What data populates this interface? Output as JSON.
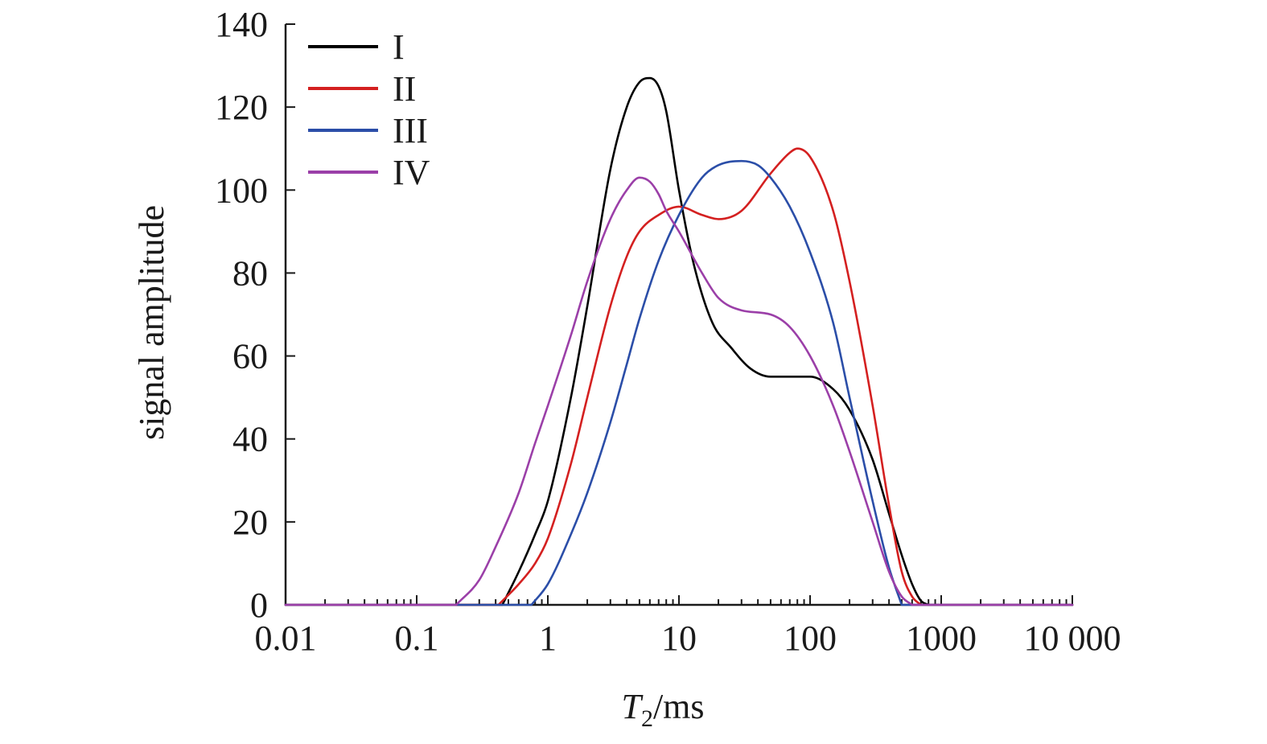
{
  "chart_data": {
    "type": "line",
    "xscale": "log",
    "xlim": [
      0.01,
      10000
    ],
    "ylim": [
      0,
      140
    ],
    "xticks": [
      0.01,
      0.1,
      1,
      10,
      100,
      1000,
      10000
    ],
    "xtick_labels": [
      "0.01",
      "0.1",
      "1",
      "10",
      "100",
      "1000",
      "10 000"
    ],
    "yticks": [
      0,
      20,
      40,
      60,
      80,
      100,
      120,
      140
    ],
    "ytick_labels": [
      "0",
      "20",
      "40",
      "60",
      "80",
      "100",
      "120",
      "140"
    ],
    "xlabel_italic": "T",
    "xlabel_sub": "2",
    "xlabel_rest": "/ms",
    "ylabel": "signal amplitude",
    "legend_position": "top-left",
    "grid": false,
    "series": [
      {
        "name": "I",
        "color": "#000000",
        "x": [
          0.45,
          0.6,
          0.8,
          1,
          1.5,
          2,
          3,
          4,
          5,
          6,
          7,
          8,
          10,
          13,
          18,
          25,
          35,
          50,
          70,
          100,
          150,
          200,
          300,
          400,
          500,
          600,
          700,
          800
        ],
        "y": [
          0,
          8,
          17,
          25,
          50,
          72,
          105,
          120,
          126,
          127,
          125,
          119,
          100,
          82,
          68,
          62,
          57,
          55,
          55,
          55,
          52,
          47,
          35,
          22,
          12,
          5,
          1,
          0
        ]
      },
      {
        "name": "II",
        "color": "#d42020",
        "x": [
          0.42,
          0.6,
          0.8,
          1,
          1.5,
          2,
          3,
          4,
          5,
          7,
          10,
          15,
          20,
          30,
          50,
          70,
          80,
          100,
          150,
          200,
          300,
          400,
          500,
          600,
          700
        ],
        "y": [
          0,
          5,
          10,
          16,
          34,
          50,
          72,
          84,
          90,
          94,
          96,
          94,
          93,
          95,
          104,
          109,
          110,
          108,
          95,
          78,
          48,
          24,
          8,
          2,
          0
        ]
      },
      {
        "name": "III",
        "color": "#2b4ea8",
        "x": [
          0.75,
          1,
          1.5,
          2,
          3,
          4,
          5,
          7,
          10,
          15,
          20,
          30,
          40,
          50,
          70,
          100,
          150,
          200,
          300,
          400,
          500
        ],
        "y": [
          0,
          5,
          17,
          27,
          44,
          58,
          69,
          83,
          94,
          103,
          106,
          107,
          106,
          103,
          96,
          85,
          68,
          50,
          25,
          9,
          0
        ]
      },
      {
        "name": "IV",
        "color": "#9b3fa8",
        "x": [
          0.2,
          0.3,
          0.4,
          0.6,
          0.8,
          1,
          1.5,
          2,
          3,
          4,
          5,
          6,
          7,
          8,
          10,
          15,
          20,
          30,
          50,
          70,
          100,
          150,
          200,
          300,
          400,
          500,
          600
        ],
        "y": [
          0,
          6,
          14,
          27,
          39,
          48,
          65,
          78,
          93,
          100,
          103,
          102,
          99,
          95,
          90,
          80,
          74,
          71,
          70,
          67,
          60,
          48,
          37,
          20,
          8,
          2,
          0
        ]
      }
    ]
  }
}
